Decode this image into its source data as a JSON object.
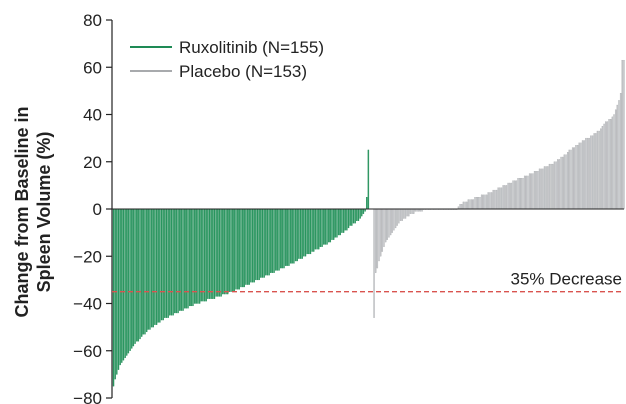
{
  "chart_data": {
    "type": "bar",
    "ylabel_line1": "Change from Baseline in",
    "ylabel_line2": "Spleen Volume (%)",
    "ylim": [
      -80,
      80
    ],
    "yticks": [
      80,
      60,
      40,
      20,
      0,
      -20,
      -40,
      -60,
      -80
    ],
    "grid": false,
    "legend_position": "top-left",
    "reference_line": {
      "value": -35,
      "label": "35% Decrease",
      "color": "#d9534f"
    },
    "series": [
      {
        "name": "Ruxolitinib (N=155)",
        "color": "#1e8a55",
        "fill": "#2e9a63",
        "values": [
          -75,
          -72,
          -70,
          -68,
          -66,
          -65,
          -64,
          -63,
          -62,
          -61,
          -60,
          -59,
          -58,
          -57,
          -56,
          -56,
          -55,
          -54,
          -53,
          -53,
          -52,
          -51,
          -51,
          -50,
          -50,
          -49,
          -49,
          -48,
          -48,
          -47,
          -47,
          -46,
          -46,
          -46,
          -45,
          -45,
          -45,
          -44,
          -44,
          -44,
          -43,
          -43,
          -43,
          -42,
          -42,
          -42,
          -41,
          -41,
          -41,
          -40,
          -40,
          -40,
          -40,
          -39,
          -39,
          -39,
          -39,
          -38,
          -38,
          -38,
          -38,
          -38,
          -37,
          -37,
          -37,
          -37,
          -36,
          -36,
          -36,
          -36,
          -35,
          -35,
          -35,
          -35,
          -34,
          -34,
          -34,
          -33,
          -33,
          -33,
          -32,
          -32,
          -32,
          -31,
          -31,
          -31,
          -30,
          -30,
          -30,
          -29,
          -29,
          -29,
          -28,
          -28,
          -28,
          -27,
          -27,
          -27,
          -26,
          -26,
          -26,
          -25,
          -25,
          -25,
          -24,
          -24,
          -24,
          -23,
          -23,
          -23,
          -22,
          -22,
          -21,
          -21,
          -21,
          -20,
          -20,
          -19,
          -19,
          -19,
          -18,
          -18,
          -17,
          -17,
          -17,
          -16,
          -16,
          -15,
          -15,
          -15,
          -14,
          -14,
          -13,
          -13,
          -12,
          -12,
          -11,
          -11,
          -10,
          -10,
          -9,
          -9,
          -8,
          -7,
          -7,
          -6,
          -6,
          -5,
          -5,
          -4,
          -3,
          -2,
          -1,
          5,
          25
        ]
      },
      {
        "name": "Placebo (N=153)",
        "color": "#a8aaad",
        "fill": "#c9cbce",
        "values": [
          -46,
          -27,
          -25,
          -22,
          -20,
          -18,
          -16,
          -14,
          -13,
          -12,
          -11,
          -10,
          -9,
          -8,
          -7,
          -6,
          -5,
          -5,
          -4,
          -4,
          -3,
          -3,
          -2,
          -2,
          -2,
          -1,
          -1,
          -1,
          -1,
          -1,
          0,
          0,
          0,
          0,
          0,
          0,
          0,
          0,
          0,
          0,
          0,
          0,
          0,
          0,
          0,
          0,
          0,
          0,
          0,
          0,
          0,
          1,
          2,
          2,
          3,
          3,
          3,
          4,
          4,
          4,
          4,
          5,
          5,
          5,
          5,
          6,
          6,
          6,
          6,
          7,
          7,
          7,
          8,
          8,
          8,
          9,
          9,
          9,
          10,
          10,
          10,
          11,
          11,
          11,
          12,
          12,
          12,
          13,
          13,
          13,
          13,
          14,
          14,
          14,
          15,
          15,
          15,
          16,
          16,
          16,
          17,
          17,
          17,
          18,
          18,
          18,
          19,
          19,
          19,
          20,
          20,
          21,
          21,
          22,
          22,
          23,
          23,
          24,
          25,
          25,
          26,
          26,
          27,
          27,
          28,
          28,
          29,
          29,
          30,
          30,
          30,
          31,
          31,
          32,
          32,
          33,
          33,
          34,
          35,
          36,
          37,
          37,
          38,
          38,
          39,
          40,
          42,
          44,
          46,
          49,
          63,
          63
        ]
      }
    ]
  }
}
